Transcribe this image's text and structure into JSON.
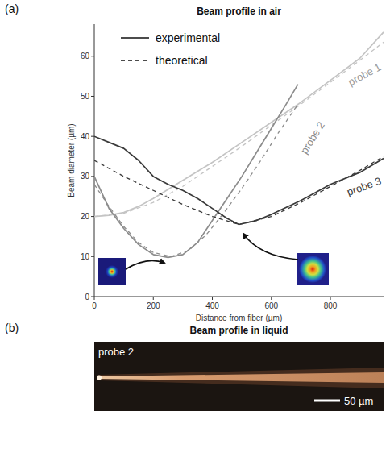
{
  "chart_data": {
    "type": "line",
    "panel_label": "(a)",
    "title": "Beam profile in air",
    "x_label": "Distance from fiber (µm)",
    "y_label": "Beam diameter (µm)",
    "xlim": [
      0,
      980
    ],
    "ylim": [
      0,
      68
    ],
    "xticks": [
      0,
      200,
      400,
      600,
      800
    ],
    "yticks": [
      0,
      10,
      20,
      30,
      40,
      50,
      60
    ],
    "grid": false,
    "legend": "upper left",
    "legend_items": [
      {
        "label": "experimental",
        "line_style": "solid"
      },
      {
        "label": "theoretical",
        "line_style": "dashed"
      }
    ],
    "series": [
      {
        "name": "probe 1",
        "color": "#c4c4c4",
        "line_style": "solid",
        "x": [
          0,
          50,
          100,
          150,
          200,
          300,
          400,
          500,
          600,
          700,
          800,
          900,
          980
        ],
        "values": [
          20,
          20.3,
          21,
          22.5,
          24.5,
          29,
          33.5,
          38.5,
          43.5,
          48.5,
          54,
          59.5,
          66
        ]
      },
      {
        "name": "probe 1",
        "color": "#c4c4c4",
        "line_style": "dashed",
        "x": [
          0,
          100,
          200,
          300,
          400,
          500,
          600,
          700,
          800,
          900,
          980
        ],
        "values": [
          20,
          20.8,
          23.5,
          27.5,
          32.5,
          37.5,
          42.8,
          48,
          53.5,
          59,
          63.5
        ]
      },
      {
        "name": "probe 2",
        "color": "#8c8c8c",
        "line_style": "solid",
        "x": [
          0,
          50,
          100,
          150,
          200,
          250,
          300,
          350,
          400,
          450,
          500,
          550,
          600,
          650,
          690
        ],
        "values": [
          30,
          22,
          17,
          13,
          10.5,
          9.8,
          10.5,
          13.5,
          19,
          24.5,
          30,
          36,
          42,
          48,
          53
        ]
      },
      {
        "name": "probe 2",
        "color": "#8c8c8c",
        "line_style": "dashed",
        "x": [
          0,
          50,
          100,
          150,
          200,
          260,
          320,
          380,
          440,
          500,
          560,
          620,
          690
        ],
        "values": [
          28,
          22.5,
          17.5,
          13.5,
          11,
          10,
          11.5,
          15.5,
          21,
          27,
          33.5,
          40.5,
          48
        ]
      },
      {
        "name": "probe 3",
        "color": "#3a3a3a",
        "line_style": "solid",
        "x": [
          0,
          50,
          100,
          150,
          200,
          250,
          300,
          350,
          400,
          450,
          490,
          550,
          600,
          700,
          800,
          900,
          980
        ],
        "values": [
          40,
          38.5,
          37,
          34,
          30,
          28,
          26.5,
          24.5,
          22,
          19.5,
          18,
          19,
          20.5,
          24,
          28,
          31,
          34.5
        ]
      },
      {
        "name": "probe 3",
        "color": "#3a3a3a",
        "line_style": "dashed",
        "x": [
          0,
          100,
          200,
          300,
          400,
          490,
          600,
          700,
          800,
          900,
          980
        ],
        "values": [
          34,
          30,
          26.5,
          23,
          20,
          18,
          20,
          23.5,
          27.5,
          31.5,
          35
        ]
      }
    ]
  },
  "panel_b": {
    "panel_label": "(b)",
    "title": "Beam profile in liquid",
    "label": "probe 2",
    "scale_bar": "50 µm"
  }
}
